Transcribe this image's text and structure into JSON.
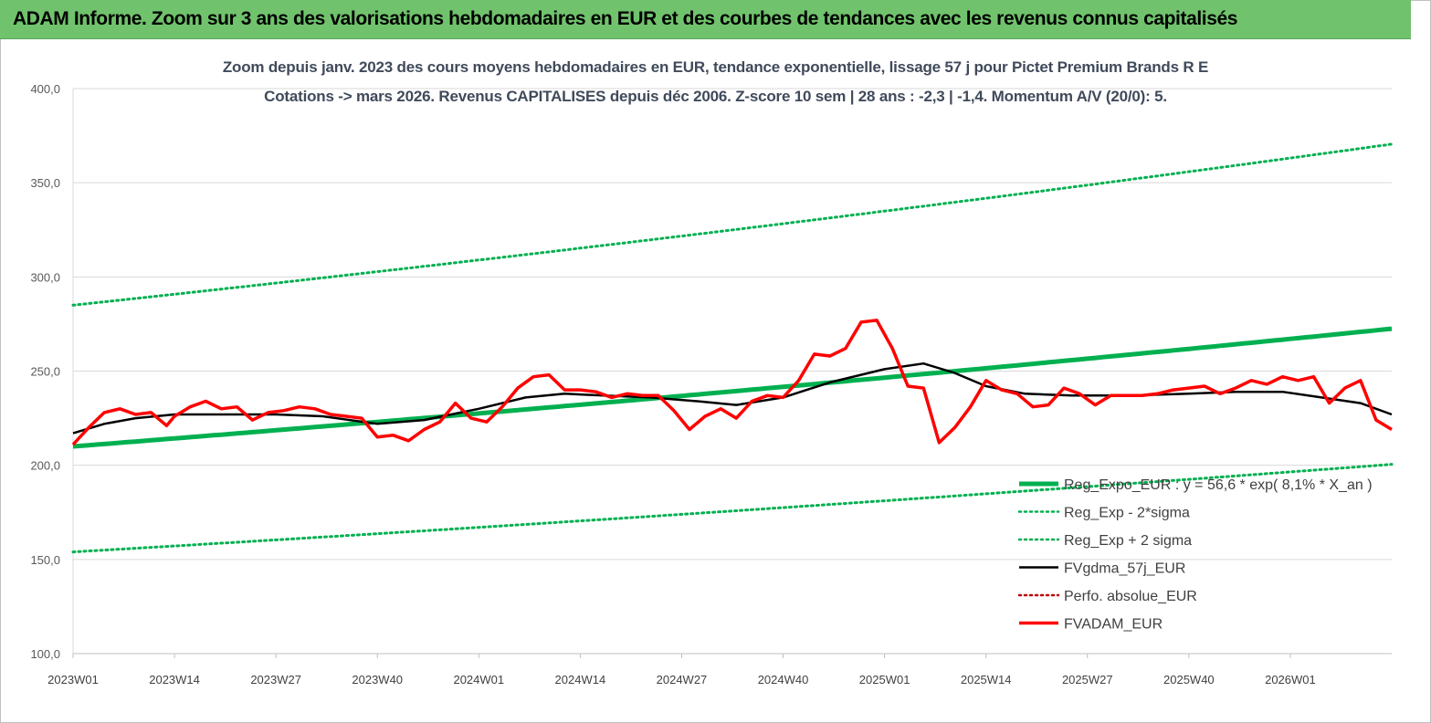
{
  "banner": {
    "title": "ADAM Informe. Zoom sur 3 ans des valorisations hebdomadaires en EUR et des courbes de tendances avec les revenus connus capitalisés"
  },
  "chart_data": {
    "type": "line",
    "title": "Zoom depuis janv. 2023 des cours moyens hebdomadaires en EUR, tendance exponentielle, lissage 57 j pour Pictet Premium Brands R E",
    "subtitle": "Cotations -> mars 2026. Revenus CAPITALISES depuis déc 2006. Z-score 10 sem | 28 ans : -2,3 | -1,4. Momentum A/V (20/0): 5.",
    "ylim": [
      100,
      400
    ],
    "y_ticks": [
      "100,0",
      "150,0",
      "200,0",
      "250,0",
      "300,0",
      "350,0",
      "400,0"
    ],
    "x_tick_labels": [
      "2023W01",
      "2023W14",
      "2023W27",
      "2023W40",
      "2024W01",
      "2024W14",
      "2024W27",
      "2024W40",
      "2025W01",
      "2025W14",
      "2025W27",
      "2025W40",
      "2026W01"
    ],
    "x_ticks_week_index": [
      0,
      13,
      26,
      39,
      52,
      65,
      78,
      91,
      104,
      117,
      130,
      143,
      156
    ],
    "x_range_weeks": [
      0,
      169
    ],
    "grid": "horizontal",
    "legend_position": "bottom-right",
    "series": [
      {
        "name": "Reg_Expo_EUR : y = 56,6 * exp( 8,1% *  X_an )",
        "color": "#00b050",
        "style": "solid-thick",
        "x": [
          0,
          169
        ],
        "values": [
          210.0,
          272.5
        ],
        "exponential": true
      },
      {
        "name": "Reg_Exp - 2*sigma",
        "color": "#00b050",
        "style": "dotted",
        "x": [
          0,
          169
        ],
        "values": [
          154.0,
          200.5
        ],
        "exponential": true
      },
      {
        "name": "Reg_Exp + 2 sigma",
        "color": "#00b050",
        "style": "dotted",
        "x": [
          0,
          169
        ],
        "values": [
          285.0,
          370.5
        ],
        "exponential": true
      },
      {
        "name": "FVgdma_57j_EUR",
        "color": "#000000",
        "style": "solid",
        "x": [
          0,
          4,
          8,
          13,
          20,
          26,
          32,
          39,
          45,
          52,
          58,
          63,
          68,
          74,
          80,
          85,
          91,
          97,
          104,
          109,
          113,
          117,
          122,
          128,
          135,
          143,
          149,
          155,
          160,
          165,
          169
        ],
        "values": [
          217,
          222,
          225,
          227,
          227,
          227,
          226,
          222,
          224,
          230,
          236,
          238,
          237,
          236,
          234,
          232,
          236,
          244,
          251,
          254,
          249,
          242,
          238,
          237,
          237,
          238,
          239,
          239,
          236,
          233,
          227
        ]
      },
      {
        "name": "Perfo. absolue_EUR",
        "color": "#c00000",
        "style": "dotted",
        "x": [],
        "values": []
      },
      {
        "name": "FVADAM_EUR",
        "color": "#ff0000",
        "style": "solid-thick",
        "x": [
          0,
          2,
          4,
          6,
          8,
          10,
          12,
          13,
          15,
          17,
          19,
          21,
          23,
          25,
          27,
          29,
          31,
          33,
          35,
          37,
          39,
          41,
          43,
          45,
          47,
          49,
          51,
          53,
          55,
          57,
          59,
          61,
          63,
          65,
          67,
          69,
          71,
          73,
          75,
          77,
          79,
          81,
          83,
          85,
          87,
          89,
          91,
          93,
          95,
          97,
          99,
          101,
          103,
          105,
          107,
          109,
          111,
          113,
          115,
          117,
          119,
          121,
          123,
          125,
          127,
          129,
          131,
          133,
          135,
          137,
          139,
          141,
          143,
          145,
          147,
          149,
          151,
          153,
          155,
          157,
          159,
          161,
          163,
          165,
          167,
          169
        ],
        "values": [
          211,
          220,
          228,
          230,
          227,
          228,
          221,
          226,
          231,
          234,
          230,
          231,
          224,
          228,
          229,
          231,
          230,
          227,
          226,
          225,
          215,
          216,
          213,
          219,
          223,
          233,
          225,
          223,
          231,
          241,
          247,
          248,
          240,
          240,
          239,
          236,
          238,
          237,
          237,
          229,
          219,
          226,
          230,
          225,
          234,
          237,
          236,
          245,
          259,
          258,
          262,
          276,
          277,
          262,
          242,
          241,
          212,
          220,
          231,
          245,
          240,
          238,
          231,
          232,
          241,
          238,
          232,
          237,
          237,
          237,
          238,
          240,
          241,
          242,
          238,
          241,
          245,
          243,
          247,
          245,
          247,
          233,
          241,
          245,
          224,
          219
        ]
      }
    ]
  }
}
